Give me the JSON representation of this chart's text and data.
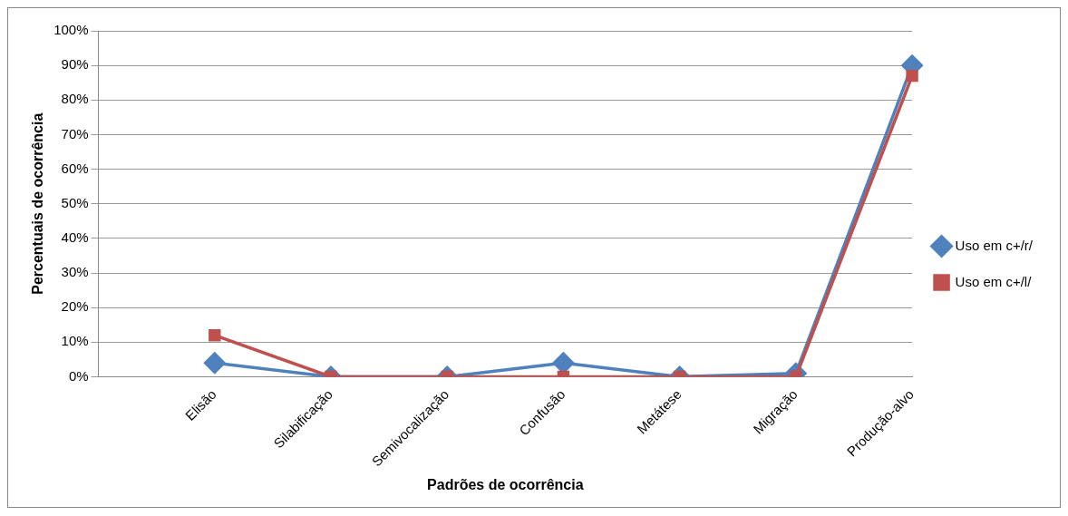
{
  "chart_data": {
    "type": "line",
    "xlabel": "Padrões de ocorrência",
    "ylabel": "Percentuais de ocorrência",
    "categories": [
      null,
      "Elisão",
      "Silabificação",
      "Semivocalização",
      "Confusão",
      "Metátese",
      "Migração",
      "Produção-alvo"
    ],
    "series": [
      {
        "name": "Uso em c+/r/",
        "color": "#4f81bd",
        "marker": "diamond",
        "values": [
          null,
          4,
          0,
          0,
          4,
          0,
          1,
          90
        ]
      },
      {
        "name": "Uso em c+/l/",
        "color": "#c0504d",
        "marker": "square",
        "values": [
          null,
          12,
          0,
          0,
          0,
          0,
          0,
          87
        ]
      }
    ],
    "ylim": [
      0,
      100
    ],
    "yticks": [
      {
        "value": 0,
        "label": "0%"
      },
      {
        "value": 10,
        "label": "10%"
      },
      {
        "value": 20,
        "label": "20%"
      },
      {
        "value": 30,
        "label": "30%"
      },
      {
        "value": 40,
        "label": "40%"
      },
      {
        "value": 50,
        "label": "50%"
      },
      {
        "value": 60,
        "label": "60%"
      },
      {
        "value": 70,
        "label": "70%"
      },
      {
        "value": 80,
        "label": "80%"
      },
      {
        "value": 90,
        "label": "90%"
      },
      {
        "value": 100,
        "label": "100%"
      }
    ],
    "grid": "y",
    "legend": "right"
  }
}
